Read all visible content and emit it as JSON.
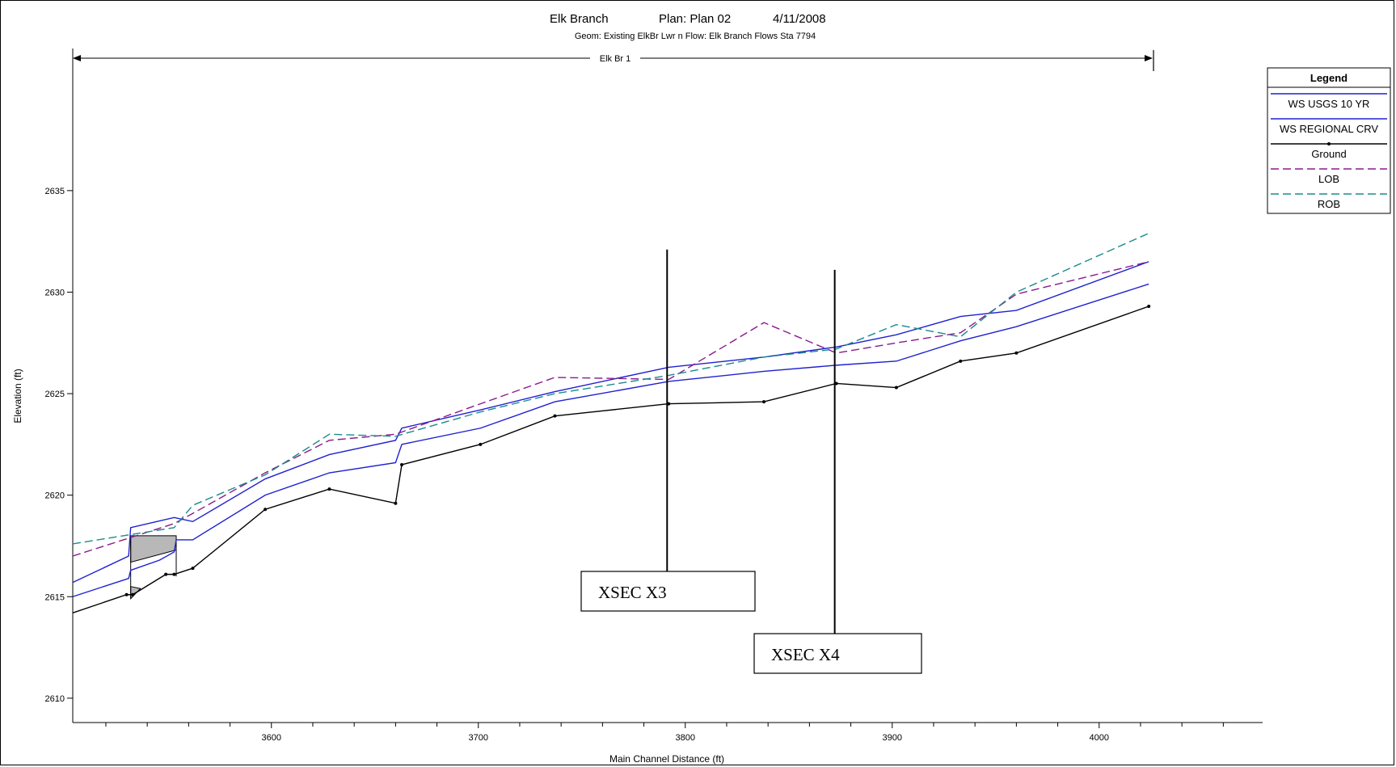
{
  "chart_data": {
    "type": "line",
    "title": "Elk Branch",
    "title_plan": "Plan: Plan 02",
    "title_date": "4/11/2008",
    "subtitle": "Geom: Existing ElkBr Lwr n   Flow: Elk Branch Flows  Sta 7794",
    "reach_label": "Elk Br 1",
    "xlabel": "Main Channel Distance (ft)",
    "ylabel": "Elevation (ft)",
    "xlim": [
      3504,
      4079
    ],
    "ylim": [
      2608.8,
      2642.0
    ],
    "x_ticks": [
      3600,
      3700,
      3800,
      3900,
      4000
    ],
    "y_ticks": [
      2610,
      2615,
      2620,
      2625,
      2630,
      2635
    ],
    "legend": {
      "title": "Legend",
      "position": "top-right",
      "entries": [
        {
          "label": "WS  USGS 10 YR",
          "color": "#2020d0",
          "style": "solid"
        },
        {
          "label": "WS  REGIONAL CRV",
          "color": "#2020d0",
          "style": "solid"
        },
        {
          "label": "Ground",
          "color": "#000000",
          "style": "solid-marker"
        },
        {
          "label": "LOB",
          "color": "#8b1a8b",
          "style": "dashed"
        },
        {
          "label": "ROB",
          "color": "#1a8b8b",
          "style": "dashed"
        }
      ]
    },
    "series": [
      {
        "name": "WS  USGS 10 YR",
        "color": "#2020d0",
        "dash": "",
        "points": [
          [
            3504,
            2615.7
          ],
          [
            3531,
            2617.0
          ],
          [
            3532,
            2618.4
          ],
          [
            3553,
            2618.9
          ],
          [
            3562,
            2618.7
          ],
          [
            3597,
            2620.8
          ],
          [
            3628,
            2622.0
          ],
          [
            3660,
            2622.7
          ],
          [
            3663,
            2623.3
          ],
          [
            3701,
            2624.2
          ],
          [
            3737,
            2625.1
          ],
          [
            3792,
            2626.3
          ],
          [
            3838,
            2626.8
          ],
          [
            3873,
            2627.3
          ],
          [
            3902,
            2627.9
          ],
          [
            3933,
            2628.8
          ],
          [
            3960,
            2629.1
          ],
          [
            4024,
            2631.5
          ]
        ]
      },
      {
        "name": "WS  REGIONAL CRV",
        "color": "#2020d0",
        "dash": "",
        "points": [
          [
            3504,
            2615.0
          ],
          [
            3531,
            2615.9
          ],
          [
            3532,
            2616.3
          ],
          [
            3546,
            2616.8
          ],
          [
            3553,
            2617.2
          ],
          [
            3554,
            2617.8
          ],
          [
            3562,
            2617.8
          ],
          [
            3597,
            2620.0
          ],
          [
            3628,
            2621.1
          ],
          [
            3660,
            2621.6
          ],
          [
            3663,
            2622.5
          ],
          [
            3701,
            2623.3
          ],
          [
            3737,
            2624.6
          ],
          [
            3792,
            2625.6
          ],
          [
            3838,
            2626.1
          ],
          [
            3873,
            2626.4
          ],
          [
            3902,
            2626.6
          ],
          [
            3933,
            2627.6
          ],
          [
            3960,
            2628.3
          ],
          [
            4024,
            2630.4
          ]
        ]
      },
      {
        "name": "Ground",
        "color": "#000000",
        "dash": "",
        "markers": true,
        "points": [
          [
            3504,
            2614.2
          ],
          [
            3530,
            2615.1
          ],
          [
            3533,
            2615.1
          ],
          [
            3549,
            2616.1
          ],
          [
            3553,
            2616.1
          ],
          [
            3562,
            2616.4
          ],
          [
            3597,
            2619.3
          ],
          [
            3628,
            2620.3
          ],
          [
            3660,
            2619.6
          ],
          [
            3663,
            2621.5
          ],
          [
            3701,
            2622.5
          ],
          [
            3737,
            2623.9
          ],
          [
            3792,
            2624.5
          ],
          [
            3838,
            2624.6
          ],
          [
            3873,
            2625.5
          ],
          [
            3902,
            2625.3
          ],
          [
            3933,
            2626.6
          ],
          [
            3960,
            2627.0
          ],
          [
            4024,
            2629.3
          ]
        ]
      },
      {
        "name": "LOB",
        "color": "#8b1a8b",
        "dash": "10,5",
        "points": [
          [
            3504,
            2617.0
          ],
          [
            3553,
            2618.6
          ],
          [
            3562,
            2619.1
          ],
          [
            3597,
            2621.1
          ],
          [
            3628,
            2622.7
          ],
          [
            3660,
            2623.0
          ],
          [
            3701,
            2624.5
          ],
          [
            3737,
            2625.8
          ],
          [
            3792,
            2625.7
          ],
          [
            3838,
            2628.5
          ],
          [
            3873,
            2627.0
          ],
          [
            3902,
            2627.5
          ],
          [
            3933,
            2628.0
          ],
          [
            3960,
            2629.9
          ],
          [
            4024,
            2631.5
          ]
        ]
      },
      {
        "name": "ROB",
        "color": "#1a8b8b",
        "dash": "10,5",
        "points": [
          [
            3504,
            2617.6
          ],
          [
            3553,
            2618.4
          ],
          [
            3562,
            2619.5
          ],
          [
            3597,
            2621.0
          ],
          [
            3628,
            2623.0
          ],
          [
            3660,
            2622.9
          ],
          [
            3701,
            2624.1
          ],
          [
            3737,
            2625.0
          ],
          [
            3792,
            2625.9
          ],
          [
            3838,
            2626.8
          ],
          [
            3873,
            2627.2
          ],
          [
            3902,
            2628.4
          ],
          [
            3933,
            2627.8
          ],
          [
            3960,
            2630.0
          ],
          [
            4024,
            2632.9
          ]
        ]
      }
    ],
    "structure": {
      "x": [
        3532,
        3554
      ],
      "deck_top": 2618.0,
      "deck_bottom": 2617.3,
      "low_chord": 2616.0
    },
    "reference_lines": [
      {
        "label": "XSEC X3",
        "x": 3792,
        "top": 2632.1,
        "bottom": 2616.0
      },
      {
        "label": "XSEC X4",
        "x": 3873,
        "top": 2631.1,
        "bottom": 2613.2
      }
    ]
  }
}
